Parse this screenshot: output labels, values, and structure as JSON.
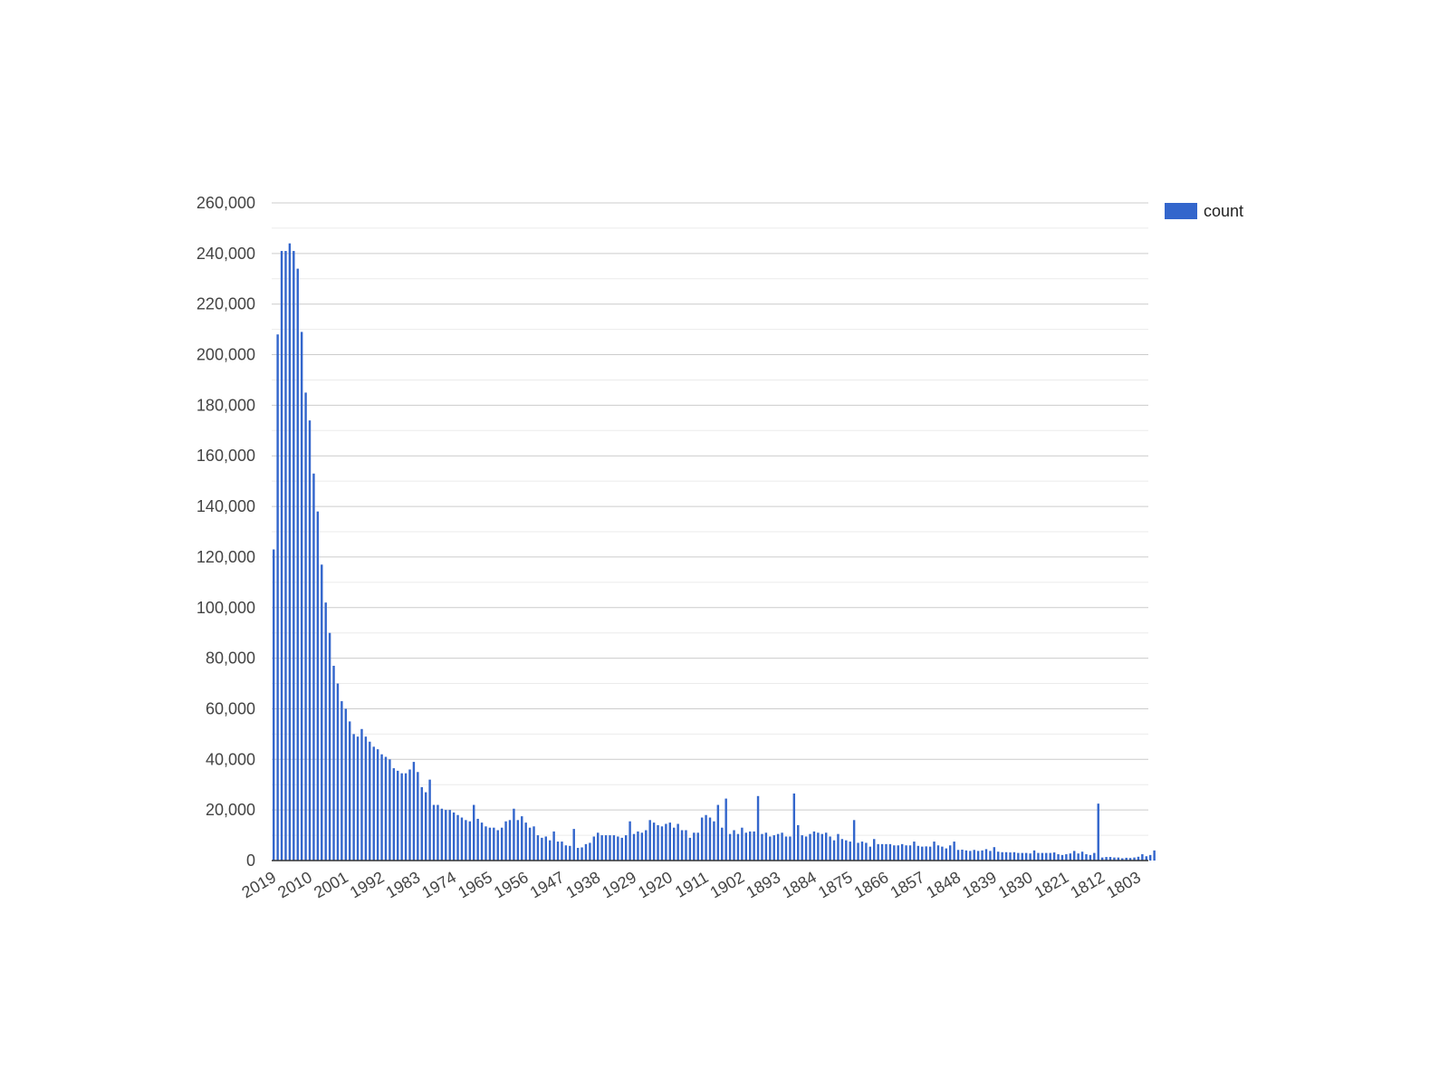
{
  "chart_data": {
    "type": "bar",
    "title": "",
    "xlabel": "",
    "ylabel": "",
    "ylim": [
      0,
      260000
    ],
    "yticks": [
      "0",
      "20,000",
      "40,000",
      "60,000",
      "80,000",
      "100,000",
      "120,000",
      "140,000",
      "160,000",
      "180,000",
      "200,000",
      "220,000",
      "240,000",
      "260,000"
    ],
    "xticks": [
      "2019",
      "2010",
      "2001",
      "1992",
      "1983",
      "1974",
      "1965",
      "1956",
      "1947",
      "1938",
      "1929",
      "1920",
      "1911",
      "1902",
      "1893",
      "1884",
      "1875",
      "1866",
      "1857",
      "1848",
      "1839",
      "1830",
      "1821",
      "1812",
      "1803"
    ],
    "x_start": 2019,
    "x_end": 1801,
    "grid": true,
    "legend_position": "top-right",
    "color": "#3366cc",
    "series": [
      {
        "name": "count",
        "values": [
          123000,
          208000,
          241000,
          241000,
          244000,
          241000,
          234000,
          209000,
          185000,
          174000,
          153000,
          138000,
          117000,
          102000,
          90000,
          77000,
          70000,
          63000,
          60000,
          55000,
          50000,
          49000,
          52000,
          49000,
          47000,
          45000,
          44000,
          42000,
          41000,
          40000,
          36500,
          35500,
          34500,
          34500,
          36000,
          39000,
          35000,
          29000,
          27000,
          32000,
          22000,
          22000,
          20500,
          20000,
          20000,
          19000,
          18000,
          17000,
          16000,
          15500,
          22000,
          16500,
          15000,
          13500,
          13000,
          13000,
          12000,
          13000,
          15500,
          16000,
          20500,
          16000,
          17500,
          15000,
          13000,
          13500,
          10000,
          9000,
          9500,
          8000,
          11500,
          7500,
          7500,
          6000,
          5800,
          12500,
          5000,
          5200,
          6500,
          7000,
          9500,
          11000,
          10000,
          10000,
          10000,
          10000,
          9500,
          9000,
          10000,
          15500,
          10500,
          11500,
          11000,
          12000,
          16000,
          15000,
          14000,
          13500,
          14500,
          15000,
          13000,
          14500,
          12000,
          12000,
          9000,
          11000,
          11000,
          17000,
          18000,
          17000,
          15500,
          22000,
          13000,
          24500,
          10500,
          12000,
          10500,
          13000,
          11000,
          11500,
          11500,
          25500,
          10500,
          11000,
          9500,
          10000,
          10500,
          11000,
          9500,
          9500,
          26500,
          14000,
          10000,
          9500,
          10500,
          11500,
          11000,
          10500,
          11000,
          9500,
          8000,
          10500,
          8500,
          8000,
          7500,
          16000,
          7000,
          7500,
          7000,
          5500,
          8500,
          6500,
          6500,
          6500,
          6500,
          6000,
          6000,
          6500,
          6000,
          6000,
          7500,
          5800,
          5500,
          5600,
          5500,
          7500,
          6000,
          5500,
          4800,
          6000,
          7500,
          4200,
          4300,
          4000,
          3800,
          4200,
          3800,
          4000,
          4500,
          3800,
          5300,
          3500,
          3300,
          3300,
          3200,
          3300,
          3000,
          3000,
          3000,
          2800,
          4000,
          3000,
          3000,
          3000,
          3000,
          3200,
          2500,
          2200,
          2500,
          2800,
          3800,
          2800,
          3500,
          2500,
          2200,
          3000,
          22500,
          1200,
          1400,
          1400,
          1200,
          1200,
          900,
          1100,
          1000,
          1200,
          1500,
          2500,
          1700,
          2200,
          4000
        ]
      }
    ]
  }
}
